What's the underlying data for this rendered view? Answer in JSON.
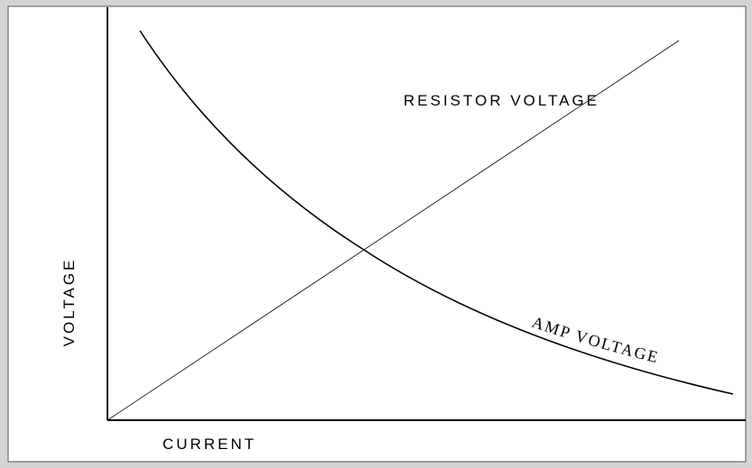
{
  "axes": {
    "y_label": "VOLTAGE",
    "x_label": "CURRENT"
  },
  "curves": [
    {
      "label": "RESISTOR VOLTAGE"
    },
    {
      "label": "AMP VOLTAGE"
    }
  ]
}
